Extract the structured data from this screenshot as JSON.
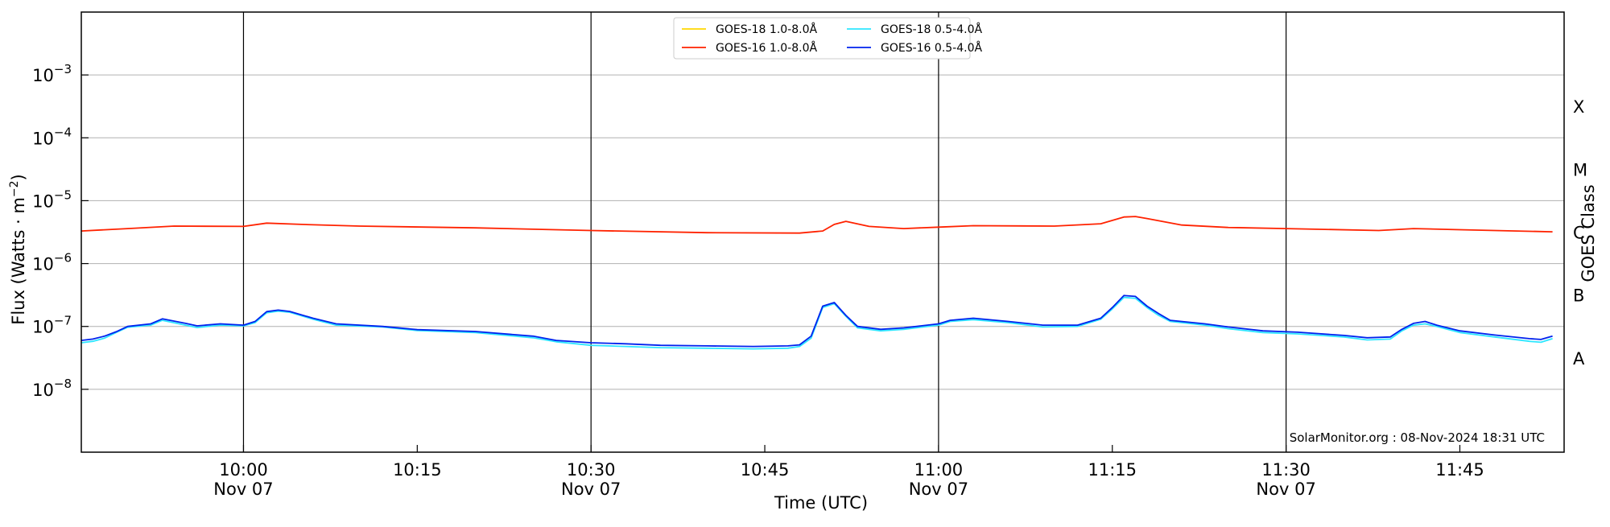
{
  "chart_data": {
    "type": "line",
    "xlabel": "Time (UTC)",
    "ylabel_right": "GOES Class",
    "y_scale": "log",
    "ylim": [
      1e-09,
      0.01
    ],
    "xlim": [
      "2024-11-07 09:46",
      "2024-11-07 11:54"
    ],
    "grid": "horizontal at each decade",
    "legend_position": "top-center",
    "watermark": "SolarMonitor.org : 08-Nov-2024 18:31 UTC",
    "x_ticks": [
      {
        "time": "10:00",
        "date": "Nov 07",
        "major": true
      },
      {
        "time": "10:15",
        "date": "",
        "major": false
      },
      {
        "time": "10:30",
        "date": "Nov 07",
        "major": true
      },
      {
        "time": "10:45",
        "date": "",
        "major": false
      },
      {
        "time": "11:00",
        "date": "Nov 07",
        "major": true
      },
      {
        "time": "11:15",
        "date": "",
        "major": false
      },
      {
        "time": "11:30",
        "date": "Nov 07",
        "major": true
      },
      {
        "time": "11:45",
        "date": "",
        "major": false
      }
    ],
    "y_ticks": [
      {
        "value": 1e-08,
        "exp": "−8"
      },
      {
        "value": 1e-07,
        "exp": "−7"
      },
      {
        "value": 1e-06,
        "exp": "−6"
      },
      {
        "value": 1e-05,
        "exp": "−5"
      },
      {
        "value": 0.0001,
        "exp": "−4"
      },
      {
        "value": 0.001,
        "exp": "−3"
      }
    ],
    "goes_classes": [
      {
        "label": "A",
        "value": 3.16e-08
      },
      {
        "label": "B",
        "value": 3.16e-07
      },
      {
        "label": "C",
        "value": 3.16e-06
      },
      {
        "label": "M",
        "value": 3.16e-05
      },
      {
        "label": "X",
        "value": 0.000316
      }
    ],
    "series": [
      {
        "name": "GOES-18 1.0-8.0Å",
        "color": "#ffd700",
        "points": []
      },
      {
        "name": "GOES-16 1.0-8.0Å",
        "color": "#ff2200",
        "points": [
          [
            "09:46",
            3.3e-06
          ],
          [
            "09:50",
            3.6e-06
          ],
          [
            "09:54",
            3.95e-06
          ],
          [
            "10:00",
            3.9e-06
          ],
          [
            "10:02",
            4.4e-06
          ],
          [
            "10:05",
            4.2e-06
          ],
          [
            "10:10",
            3.95e-06
          ],
          [
            "10:20",
            3.7e-06
          ],
          [
            "10:30",
            3.35e-06
          ],
          [
            "10:40",
            3.1e-06
          ],
          [
            "10:48",
            3.05e-06
          ],
          [
            "10:50",
            3.3e-06
          ],
          [
            "10:51",
            4.2e-06
          ],
          [
            "10:52",
            4.7e-06
          ],
          [
            "10:54",
            3.9e-06
          ],
          [
            "10:57",
            3.6e-06
          ],
          [
            "11:00",
            3.8e-06
          ],
          [
            "11:03",
            4e-06
          ],
          [
            "11:10",
            3.95e-06
          ],
          [
            "11:14",
            4.3e-06
          ],
          [
            "11:16",
            5.5e-06
          ],
          [
            "11:17",
            5.6e-06
          ],
          [
            "11:18",
            5.2e-06
          ],
          [
            "11:21",
            4.1e-06
          ],
          [
            "11:25",
            3.75e-06
          ],
          [
            "11:30",
            3.6e-06
          ],
          [
            "11:38",
            3.35e-06
          ],
          [
            "11:41",
            3.6e-06
          ],
          [
            "11:45",
            3.45e-06
          ],
          [
            "11:53",
            3.2e-06
          ]
        ]
      },
      {
        "name": "GOES-18 0.5-4.0Å",
        "color": "#2ee6ff",
        "points": [
          [
            "09:46",
            5.5e-08
          ],
          [
            "09:47",
            5.8e-08
          ],
          [
            "09:48",
            6.5e-08
          ],
          [
            "09:49",
            8e-08
          ],
          [
            "09:50",
            9.7e-08
          ],
          [
            "09:52",
            1.05e-07
          ],
          [
            "09:53",
            1.25e-07
          ],
          [
            "09:55",
            1.05e-07
          ],
          [
            "09:56",
            9.6e-08
          ],
          [
            "09:58",
            1.05e-07
          ],
          [
            "10:00",
            1.02e-07
          ],
          [
            "10:01",
            1.15e-07
          ],
          [
            "10:02",
            1.65e-07
          ],
          [
            "10:03",
            1.75e-07
          ],
          [
            "10:04",
            1.68e-07
          ],
          [
            "10:06",
            1.3e-07
          ],
          [
            "10:08",
            1.05e-07
          ],
          [
            "10:12",
            9.8e-08
          ],
          [
            "10:15",
            8.6e-08
          ],
          [
            "10:20",
            8e-08
          ],
          [
            "10:25",
            6.6e-08
          ],
          [
            "10:27",
            5.7e-08
          ],
          [
            "10:30",
            5e-08
          ],
          [
            "10:33",
            4.8e-08
          ],
          [
            "10:36",
            4.6e-08
          ],
          [
            "10:40",
            4.5e-08
          ],
          [
            "10:44",
            4.4e-08
          ],
          [
            "10:47",
            4.5e-08
          ],
          [
            "10:48",
            4.8e-08
          ],
          [
            "10:49",
            6.5e-08
          ],
          [
            "10:50",
            2e-07
          ],
          [
            "10:51",
            2.3e-07
          ],
          [
            "10:52",
            1.45e-07
          ],
          [
            "10:53",
            9.5e-08
          ],
          [
            "10:55",
            8.5e-08
          ],
          [
            "10:57",
            9e-08
          ],
          [
            "11:00",
            1.05e-07
          ],
          [
            "11:01",
            1.2e-07
          ],
          [
            "11:03",
            1.28e-07
          ],
          [
            "11:06",
            1.15e-07
          ],
          [
            "11:09",
            9.8e-08
          ],
          [
            "11:12",
            1e-07
          ],
          [
            "11:14",
            1.3e-07
          ],
          [
            "11:15",
            1.9e-07
          ],
          [
            "11:16",
            2.9e-07
          ],
          [
            "11:17",
            2.8e-07
          ],
          [
            "11:18",
            2e-07
          ],
          [
            "11:19",
            1.5e-07
          ],
          [
            "11:20",
            1.2e-07
          ],
          [
            "11:23",
            1.05e-07
          ],
          [
            "11:25",
            9.2e-08
          ],
          [
            "11:28",
            8e-08
          ],
          [
            "11:31",
            7.6e-08
          ],
          [
            "11:35",
            6.8e-08
          ],
          [
            "11:37",
            6.1e-08
          ],
          [
            "11:39",
            6.3e-08
          ],
          [
            "11:40",
            8.5e-08
          ],
          [
            "11:41",
            1.05e-07
          ],
          [
            "11:42",
            1.1e-07
          ],
          [
            "11:43",
            1e-07
          ],
          [
            "11:45",
            8e-08
          ],
          [
            "11:48",
            6.8e-08
          ],
          [
            "11:51",
            5.8e-08
          ],
          [
            "11:52",
            5.6e-08
          ],
          [
            "11:53",
            6.4e-08
          ]
        ]
      },
      {
        "name": "GOES-16 0.5-4.0Å",
        "color": "#0022ee",
        "points": [
          [
            "09:46",
            6e-08
          ],
          [
            "09:47",
            6.3e-08
          ],
          [
            "09:48",
            7e-08
          ],
          [
            "09:49",
            8.2e-08
          ],
          [
            "09:50",
            1e-07
          ],
          [
            "09:52",
            1.1e-07
          ],
          [
            "09:53",
            1.32e-07
          ],
          [
            "09:55",
            1.12e-07
          ],
          [
            "09:56",
            1.02e-07
          ],
          [
            "09:58",
            1.1e-07
          ],
          [
            "10:00",
            1.05e-07
          ],
          [
            "10:01",
            1.2e-07
          ],
          [
            "10:02",
            1.72e-07
          ],
          [
            "10:03",
            1.82e-07
          ],
          [
            "10:04",
            1.73e-07
          ],
          [
            "10:06",
            1.35e-07
          ],
          [
            "10:08",
            1.1e-07
          ],
          [
            "10:12",
            1e-07
          ],
          [
            "10:15",
            8.9e-08
          ],
          [
            "10:20",
            8.3e-08
          ],
          [
            "10:25",
            7e-08
          ],
          [
            "10:27",
            6e-08
          ],
          [
            "10:30",
            5.5e-08
          ],
          [
            "10:33",
            5.3e-08
          ],
          [
            "10:36",
            5e-08
          ],
          [
            "10:40",
            4.9e-08
          ],
          [
            "10:44",
            4.8e-08
          ],
          [
            "10:47",
            4.9e-08
          ],
          [
            "10:48",
            5.1e-08
          ],
          [
            "10:49",
            7e-08
          ],
          [
            "10:50",
            2.1e-07
          ],
          [
            "10:51",
            2.4e-07
          ],
          [
            "10:52",
            1.5e-07
          ],
          [
            "10:53",
            1e-07
          ],
          [
            "10:55",
            9e-08
          ],
          [
            "10:57",
            9.5e-08
          ],
          [
            "11:00",
            1.1e-07
          ],
          [
            "11:01",
            1.25e-07
          ],
          [
            "11:03",
            1.35e-07
          ],
          [
            "11:06",
            1.2e-07
          ],
          [
            "11:09",
            1.05e-07
          ],
          [
            "11:12",
            1.05e-07
          ],
          [
            "11:14",
            1.35e-07
          ],
          [
            "11:15",
            2e-07
          ],
          [
            "11:16",
            3.1e-07
          ],
          [
            "11:17",
            3e-07
          ],
          [
            "11:18",
            2.1e-07
          ],
          [
            "11:19",
            1.6e-07
          ],
          [
            "11:20",
            1.25e-07
          ],
          [
            "11:23",
            1.1e-07
          ],
          [
            "11:25",
            9.8e-08
          ],
          [
            "11:28",
            8.5e-08
          ],
          [
            "11:31",
            8.1e-08
          ],
          [
            "11:35",
            7.2e-08
          ],
          [
            "11:37",
            6.6e-08
          ],
          [
            "11:39",
            6.8e-08
          ],
          [
            "11:40",
            9e-08
          ],
          [
            "11:41",
            1.12e-07
          ],
          [
            "11:42",
            1.2e-07
          ],
          [
            "11:43",
            1.05e-07
          ],
          [
            "11:45",
            8.5e-08
          ],
          [
            "11:48",
            7.3e-08
          ],
          [
            "11:51",
            6.4e-08
          ],
          [
            "11:52",
            6.2e-08
          ],
          [
            "11:53",
            7e-08
          ]
        ]
      }
    ]
  }
}
